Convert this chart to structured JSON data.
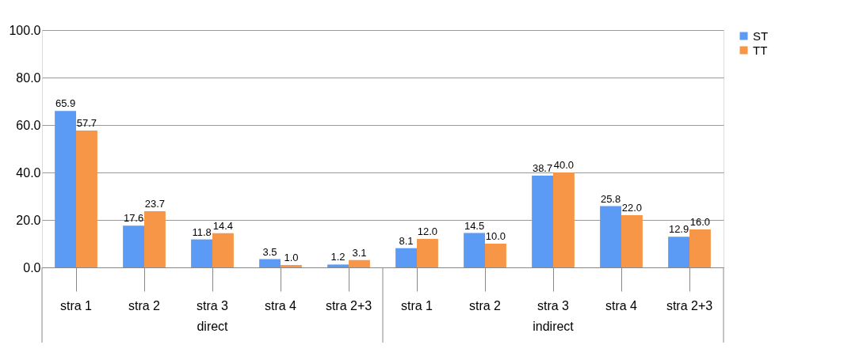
{
  "chart_data": {
    "type": "bar",
    "categories": [
      "stra 1",
      "stra 2",
      "stra 3",
      "stra 4",
      "stra 2+3",
      "stra 1",
      "stra 2",
      "stra 3",
      "stra 4",
      "stra 2+3"
    ],
    "series": [
      {
        "name": "ST",
        "color": "#5b9bf5",
        "values": [
          65.9,
          17.6,
          11.8,
          3.5,
          1.2,
          8.1,
          14.5,
          38.7,
          25.8,
          12.9
        ],
        "value_labels": [
          "65.9",
          "17.6",
          "11.8",
          "3.5",
          "1.2",
          "8.1",
          "14.5",
          "38.7",
          "25.8",
          "12.9"
        ]
      },
      {
        "name": "TT",
        "color": "#f79646",
        "values": [
          57.7,
          23.7,
          14.4,
          1.0,
          3.1,
          12.0,
          10.0,
          40.0,
          22.0,
          16.0
        ],
        "value_labels": [
          "57.7",
          "23.7",
          "14.4",
          "1.0",
          "3.1",
          "12.0",
          "10.0",
          "40.0",
          "22.0",
          "16.0"
        ]
      }
    ],
    "annotations": [
      "direct",
      "indirect"
    ],
    "ylim": [
      0,
      100
    ],
    "yticks": [
      {
        "value": 0,
        "label": "0.0"
      },
      {
        "value": 20,
        "label": "20.0"
      },
      {
        "value": 40,
        "label": "40.0"
      },
      {
        "value": 60,
        "label": "60.0"
      },
      {
        "value": 80,
        "label": "80.0"
      },
      {
        "value": 100,
        "label": "100.0"
      }
    ],
    "grid": "y",
    "legend": "right"
  }
}
